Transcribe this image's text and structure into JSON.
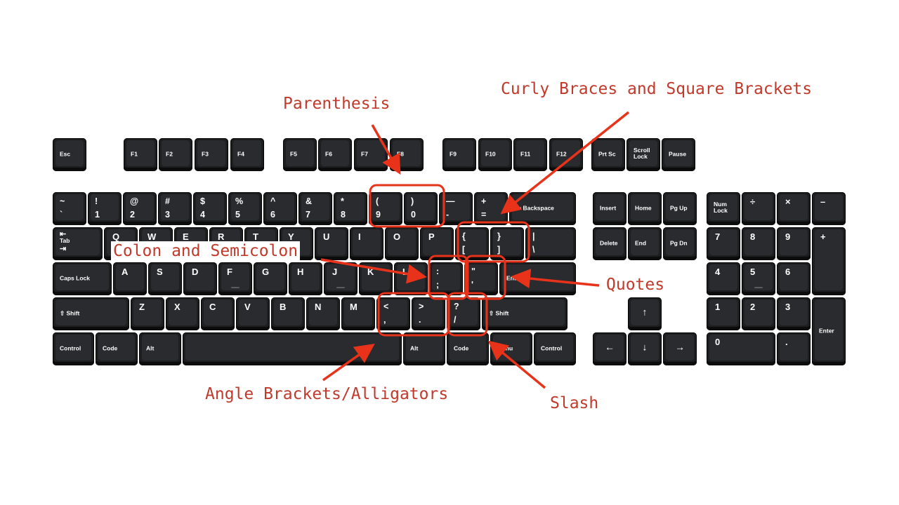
{
  "diagram": {
    "highlight_color": "#e8321a",
    "label_color": "#c0392b",
    "function_row": [
      {
        "id": "esc",
        "name": "Esc"
      },
      {
        "id": "f1",
        "name": "F1"
      },
      {
        "id": "f2",
        "name": "F2"
      },
      {
        "id": "f3",
        "name": "F3"
      },
      {
        "id": "f4",
        "name": "F4"
      },
      {
        "id": "f5",
        "name": "F5"
      },
      {
        "id": "f6",
        "name": "F6"
      },
      {
        "id": "f7",
        "name": "F7"
      },
      {
        "id": "f8",
        "name": "F8"
      },
      {
        "id": "f9",
        "name": "F9"
      },
      {
        "id": "f10",
        "name": "F10"
      },
      {
        "id": "f11",
        "name": "F11"
      },
      {
        "id": "f12",
        "name": "F12"
      },
      {
        "id": "prtsc",
        "name": "Prt Sc"
      },
      {
        "id": "scroll-lock",
        "name": "Scroll\nLock"
      },
      {
        "id": "pause",
        "name": "Pause"
      }
    ],
    "number_row": [
      {
        "id": "backquote",
        "top": "~",
        "bottom": "`"
      },
      {
        "id": "digit1",
        "top": "!",
        "bottom": "1"
      },
      {
        "id": "digit2",
        "top": "@",
        "bottom": "2"
      },
      {
        "id": "digit3",
        "top": "#",
        "bottom": "3"
      },
      {
        "id": "digit4",
        "top": "$",
        "bottom": "4"
      },
      {
        "id": "digit5",
        "top": "%",
        "bottom": "5"
      },
      {
        "id": "digit6",
        "top": "^",
        "bottom": "6"
      },
      {
        "id": "digit7",
        "top": "&",
        "bottom": "7"
      },
      {
        "id": "digit8",
        "top": "*",
        "bottom": "8"
      },
      {
        "id": "digit9",
        "top": "(",
        "bottom": "9"
      },
      {
        "id": "digit0",
        "top": ")",
        "bottom": "0"
      },
      {
        "id": "minus",
        "top": "—",
        "bottom": "-"
      },
      {
        "id": "equal",
        "top": "+",
        "bottom": "="
      },
      {
        "id": "backspace",
        "name": "⬅ Backspace"
      }
    ],
    "qwerty_row": [
      {
        "id": "tab",
        "top": "⇤",
        "mid": "Tab",
        "bottom": "⇥"
      },
      {
        "id": "q",
        "letter": "Q"
      },
      {
        "id": "w",
        "letter": "W"
      },
      {
        "id": "e",
        "letter": "E"
      },
      {
        "id": "r",
        "letter": "R"
      },
      {
        "id": "t",
        "letter": "T"
      },
      {
        "id": "y",
        "letter": "Y"
      },
      {
        "id": "u",
        "letter": "U"
      },
      {
        "id": "i",
        "letter": "I"
      },
      {
        "id": "o",
        "letter": "O"
      },
      {
        "id": "p",
        "letter": "P"
      },
      {
        "id": "bracket-left",
        "top": "{",
        "bottom": "["
      },
      {
        "id": "bracket-right",
        "top": "}",
        "bottom": "]"
      },
      {
        "id": "backslash",
        "top": "|",
        "bottom": "\\"
      }
    ],
    "home_row": [
      {
        "id": "caps-lock",
        "name": "Caps Lock"
      },
      {
        "id": "a",
        "letter": "A"
      },
      {
        "id": "s",
        "letter": "S"
      },
      {
        "id": "d",
        "letter": "D"
      },
      {
        "id": "f",
        "letter": "F",
        "bump": true
      },
      {
        "id": "g",
        "letter": "G"
      },
      {
        "id": "h",
        "letter": "H"
      },
      {
        "id": "j",
        "letter": "J",
        "bump": true
      },
      {
        "id": "k",
        "letter": "K"
      },
      {
        "id": "l",
        "letter": "L"
      },
      {
        "id": "semicolon",
        "top": ":",
        "bottom": ";"
      },
      {
        "id": "quote",
        "top": "\"",
        "bottom": "'"
      },
      {
        "id": "enter",
        "name": "Enter"
      }
    ],
    "shift_row": [
      {
        "id": "shift-left",
        "name": "⇧ Shift"
      },
      {
        "id": "z",
        "letter": "Z"
      },
      {
        "id": "x",
        "letter": "X"
      },
      {
        "id": "c",
        "letter": "C"
      },
      {
        "id": "v",
        "letter": "V"
      },
      {
        "id": "b",
        "letter": "B"
      },
      {
        "id": "n",
        "letter": "N"
      },
      {
        "id": "m",
        "letter": "M"
      },
      {
        "id": "comma",
        "top": "<",
        "bottom": ","
      },
      {
        "id": "period",
        "top": ">",
        "bottom": "."
      },
      {
        "id": "slash",
        "top": "?",
        "bottom": "/"
      },
      {
        "id": "shift-right",
        "name": "⇧ Shift"
      }
    ],
    "bottom_row": [
      {
        "id": "control-left",
        "name": "Control"
      },
      {
        "id": "code-left",
        "name": "Code"
      },
      {
        "id": "alt-left",
        "name": "Alt"
      },
      {
        "id": "space",
        "name": ""
      },
      {
        "id": "alt-right",
        "name": "Alt"
      },
      {
        "id": "code-right",
        "name": "Code"
      },
      {
        "id": "menu",
        "name": "Menu"
      },
      {
        "id": "control-right",
        "name": "Control"
      }
    ],
    "nav_cluster": [
      {
        "id": "insert",
        "name": "Insert"
      },
      {
        "id": "home",
        "name": "Home"
      },
      {
        "id": "pgup",
        "name": "Pg Up"
      },
      {
        "id": "delete",
        "name": "Delete"
      },
      {
        "id": "end",
        "name": "End"
      },
      {
        "id": "pgdn",
        "name": "Pg Dn"
      }
    ],
    "arrow_cluster": [
      {
        "id": "arrow-up",
        "arrow": "↑"
      },
      {
        "id": "arrow-left",
        "arrow": "←"
      },
      {
        "id": "arrow-down",
        "arrow": "↓"
      },
      {
        "id": "arrow-right",
        "arrow": "→"
      }
    ],
    "numpad": [
      {
        "id": "num-lock",
        "name": "Num\nLock"
      },
      {
        "id": "num-divide",
        "char": "÷"
      },
      {
        "id": "num-multiply",
        "char": "×"
      },
      {
        "id": "num-minus",
        "char": "–"
      },
      {
        "id": "num7",
        "char": "7"
      },
      {
        "id": "num8",
        "char": "8"
      },
      {
        "id": "num9",
        "char": "9"
      },
      {
        "id": "num-plus",
        "char": "+"
      },
      {
        "id": "num4",
        "char": "4"
      },
      {
        "id": "num5",
        "char": "5",
        "bump": true
      },
      {
        "id": "num6",
        "char": "6"
      },
      {
        "id": "num1",
        "char": "1"
      },
      {
        "id": "num2",
        "char": "2"
      },
      {
        "id": "num3",
        "char": "3"
      },
      {
        "id": "num-enter",
        "name": "Enter"
      },
      {
        "id": "num0",
        "char": "0"
      },
      {
        "id": "num-decimal",
        "char": "."
      }
    ]
  },
  "annotations": {
    "parenthesis": "Parenthesis",
    "curly_square": "Curly Braces and Square Brackets",
    "colon_semicolon": "Colon and Semicolon",
    "quotes": "Quotes",
    "angle": "Angle Brackets/Alligators",
    "slash": "Slash"
  }
}
